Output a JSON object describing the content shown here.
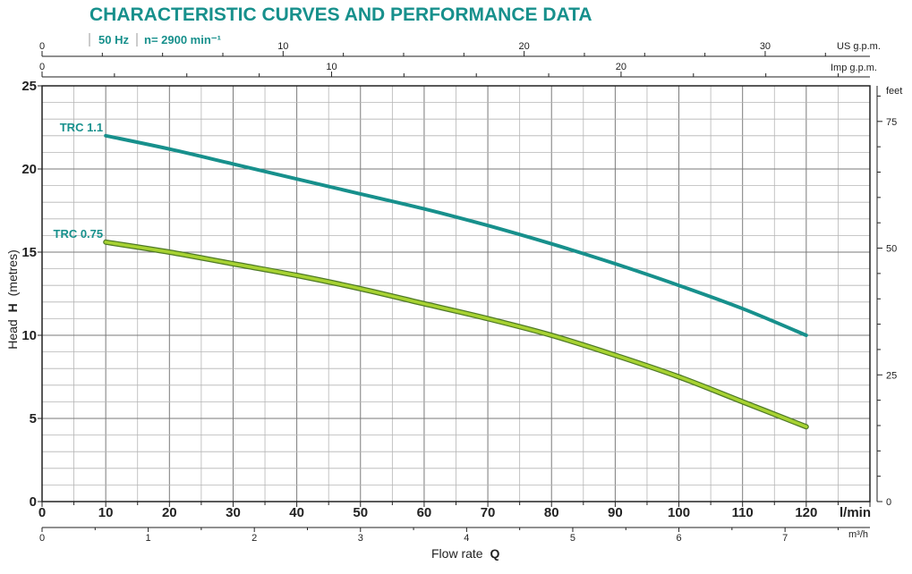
{
  "chart_data": {
    "type": "line",
    "title": "CHARACTERISTIC CURVES AND PERFORMANCE DATA",
    "frequency": "50 Hz",
    "speed": "n= 2900 min⁻¹",
    "xlabel": "Flow rate",
    "xlabel_bold": "Q",
    "ylabel": "Head",
    "ylabel_bold": "H",
    "ylabel_unit": "(metres)",
    "x_unit": "l/min",
    "xlim": [
      0,
      130
    ],
    "ylim": [
      0,
      25
    ],
    "x_ticks": [
      "0",
      "10",
      "20",
      "30",
      "40",
      "50",
      "60",
      "70",
      "80",
      "90",
      "100",
      "110",
      "120"
    ],
    "y_ticks": [
      "0",
      "5",
      "10",
      "15",
      "20",
      "25"
    ],
    "grid": true,
    "secondary_axes": {
      "us_gpm": {
        "label": "US g.p.m.",
        "factor": 3.785,
        "ticks": [
          "0",
          "10",
          "20",
          "30"
        ]
      },
      "imp_gpm": {
        "label": "Imp g.p.m.",
        "factor": 4.546,
        "ticks": [
          "0",
          "10",
          "20"
        ]
      },
      "m3h": {
        "label": "m³/h",
        "factor": 16.667,
        "ticks": [
          "0",
          "1",
          "2",
          "3",
          "4",
          "5",
          "6",
          "7"
        ]
      },
      "feet": {
        "label": "feet",
        "factor": 0.3048,
        "ticks": [
          "0",
          "25",
          "50",
          "75"
        ]
      }
    },
    "series": [
      {
        "name": "TRC 1.1",
        "color": "#17908c",
        "x": [
          10,
          20,
          30,
          40,
          50,
          60,
          70,
          80,
          90,
          100,
          110,
          120
        ],
        "y": [
          22.0,
          21.2,
          20.3,
          19.4,
          18.5,
          17.6,
          16.6,
          15.5,
          14.3,
          13.0,
          11.6,
          10.0
        ]
      },
      {
        "name": "TRC 0.75",
        "color": "#a7d232",
        "outline": "#4f7a26",
        "x": [
          10,
          20,
          30,
          40,
          50,
          60,
          70,
          80,
          90,
          100,
          110,
          120
        ],
        "y": [
          15.6,
          15.0,
          14.3,
          13.6,
          12.8,
          11.9,
          11.0,
          10.0,
          8.8,
          7.5,
          6.0,
          4.5
        ]
      }
    ]
  }
}
